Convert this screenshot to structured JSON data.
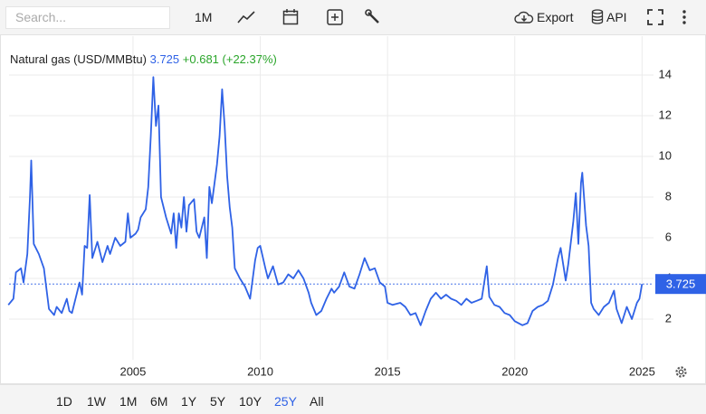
{
  "toolbar": {
    "search_placeholder": "Search...",
    "interval": "1M",
    "export": "Export",
    "api": "API"
  },
  "ranges": {
    "items": [
      "1D",
      "1W",
      "1M",
      "6M",
      "1Y",
      "5Y",
      "10Y",
      "25Y",
      "All"
    ],
    "active": "25Y"
  },
  "chart_data": {
    "type": "line",
    "title": "Natural gas (USD/MMBtu)",
    "last": 3.725,
    "change": "+0.681",
    "change_pct": "(+22.37%)",
    "color": "#2f62e6",
    "change_color": "#2aa52a",
    "grid": true,
    "axis_side": "right",
    "x": [
      2000.1,
      2000.3,
      2000.4,
      2000.6,
      2000.7,
      2000.85,
      2000.95,
      2001.0,
      2001.1,
      2001.3,
      2001.5,
      2001.7,
      2001.9,
      2002.0,
      2002.2,
      2002.4,
      2002.5,
      2002.6,
      2002.9,
      2003.0,
      2003.1,
      2003.2,
      2003.3,
      2003.4,
      2003.6,
      2003.8,
      2004.0,
      2004.1,
      2004.3,
      2004.5,
      2004.7,
      2004.8,
      2004.9,
      2005.1,
      2005.2,
      2005.3,
      2005.5,
      2005.6,
      2005.7,
      2005.8,
      2005.9,
      2006.0,
      2006.1,
      2006.3,
      2006.5,
      2006.6,
      2006.7,
      2006.8,
      2006.9,
      2007.0,
      2007.1,
      2007.2,
      2007.4,
      2007.5,
      2007.6,
      2007.7,
      2007.8,
      2007.9,
      2008.0,
      2008.1,
      2008.3,
      2008.4,
      2008.5,
      2008.6,
      2008.7,
      2008.8,
      2008.9,
      2009.0,
      2009.2,
      2009.4,
      2009.6,
      2009.8,
      2009.9,
      2010.0,
      2010.2,
      2010.3,
      2010.5,
      2010.7,
      2010.9,
      2011.1,
      2011.3,
      2011.5,
      2011.7,
      2011.9,
      2012.0,
      2012.2,
      2012.4,
      2012.6,
      2012.8,
      2012.9,
      2013.1,
      2013.3,
      2013.5,
      2013.7,
      2013.9,
      2014.0,
      2014.1,
      2014.3,
      2014.5,
      2014.7,
      2014.9,
      2015.0,
      2015.2,
      2015.5,
      2015.7,
      2015.9,
      2016.1,
      2016.3,
      2016.5,
      2016.7,
      2016.9,
      2017.1,
      2017.3,
      2017.5,
      2017.7,
      2017.9,
      2018.1,
      2018.3,
      2018.5,
      2018.7,
      2018.9,
      2019.0,
      2019.2,
      2019.4,
      2019.6,
      2019.8,
      2020.0,
      2020.3,
      2020.5,
      2020.7,
      2020.9,
      2021.1,
      2021.3,
      2021.5,
      2021.7,
      2021.8,
      2022.0,
      2022.1,
      2022.3,
      2022.4,
      2022.5,
      2022.6,
      2022.65,
      2022.8,
      2022.9,
      2023.0,
      2023.1,
      2023.3,
      2023.5,
      2023.7,
      2023.9,
      2024.0,
      2024.2,
      2024.4,
      2024.6,
      2024.8,
      2024.9,
      2025.0
    ],
    "values": [
      2.7,
      3.0,
      4.3,
      4.5,
      3.8,
      5.2,
      8.0,
      9.8,
      5.7,
      5.2,
      4.5,
      2.5,
      2.2,
      2.6,
      2.3,
      3.0,
      2.4,
      2.3,
      3.8,
      3.2,
      5.6,
      5.5,
      8.1,
      5.0,
      5.8,
      4.8,
      5.6,
      5.2,
      6.0,
      5.6,
      5.8,
      7.2,
      6.0,
      6.2,
      6.4,
      7.0,
      7.4,
      8.5,
      11.0,
      13.9,
      11.5,
      12.5,
      8.0,
      7.0,
      6.2,
      7.2,
      5.5,
      7.2,
      6.5,
      8.0,
      6.3,
      7.6,
      7.9,
      6.3,
      6.0,
      6.5,
      7.0,
      5.0,
      8.5,
      7.7,
      9.6,
      11.0,
      13.3,
      11.5,
      9.0,
      7.5,
      6.5,
      4.5,
      4.0,
      3.6,
      3.0,
      4.9,
      5.5,
      5.6,
      4.5,
      4.0,
      4.6,
      3.7,
      3.8,
      4.2,
      4.0,
      4.4,
      4.0,
      3.3,
      2.8,
      2.2,
      2.4,
      3.0,
      3.5,
      3.3,
      3.6,
      4.3,
      3.6,
      3.5,
      4.2,
      4.6,
      5.0,
      4.4,
      4.5,
      3.8,
      3.6,
      2.8,
      2.7,
      2.8,
      2.6,
      2.2,
      2.3,
      1.7,
      2.4,
      3.0,
      3.3,
      3.0,
      3.2,
      3.0,
      2.9,
      2.7,
      3.0,
      2.8,
      2.9,
      3.0,
      4.6,
      3.1,
      2.7,
      2.6,
      2.3,
      2.2,
      1.9,
      1.7,
      1.8,
      2.4,
      2.6,
      2.7,
      2.9,
      3.7,
      5.0,
      5.5,
      3.9,
      4.7,
      6.8,
      8.2,
      5.7,
      8.7,
      9.2,
      6.6,
      5.6,
      2.8,
      2.5,
      2.2,
      2.6,
      2.8,
      3.4,
      2.5,
      1.8,
      2.6,
      2.0,
      2.8,
      3.0,
      3.725
    ],
    "xlim": [
      2000.13,
      2025.45
    ],
    "xticks": [
      2005,
      2010,
      2015,
      2020,
      2025
    ],
    "ylim": [
      0,
      15.8
    ],
    "yticks": [
      2,
      4,
      6,
      8,
      10,
      12,
      14
    ]
  }
}
